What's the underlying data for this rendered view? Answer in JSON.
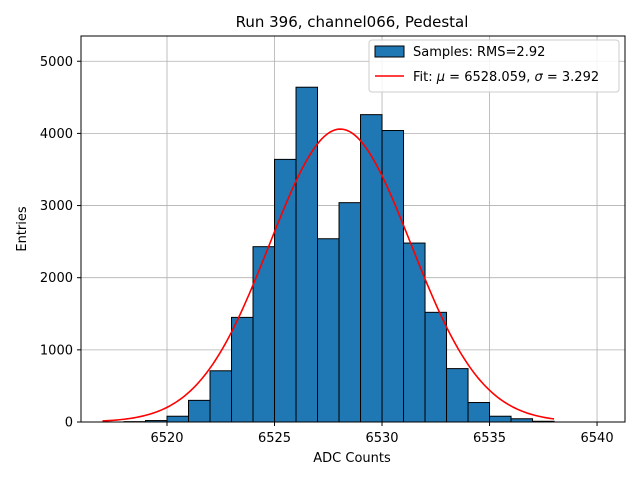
{
  "chart_data": {
    "type": "bar",
    "title": "Run 396, channel066, Pedestal",
    "xlabel": "ADC Counts",
    "ylabel": "Entries",
    "xlim": [
      6516.0,
      6541.3
    ],
    "ylim": [
      0,
      5350
    ],
    "x_ticks": [
      6520,
      6525,
      6530,
      6535,
      6540
    ],
    "y_ticks": [
      0,
      1000,
      2000,
      3000,
      4000,
      5000
    ],
    "grid": true,
    "legend_position": "top-right",
    "histogram": {
      "name": "Samples: RMS=2.92",
      "color": "#1f77b4",
      "edgecolor": "#000000",
      "bin_width": 1,
      "bin_lefts": [
        6518,
        6519,
        6520,
        6521,
        6522,
        6523,
        6524,
        6525,
        6526,
        6527,
        6528,
        6529,
        6530,
        6531,
        6532,
        6533,
        6534,
        6535,
        6536,
        6537
      ],
      "counts": [
        5,
        20,
        80,
        300,
        710,
        1450,
        2430,
        3640,
        4640,
        2540,
        3040,
        4260,
        4040,
        2480,
        1520,
        740,
        270,
        80,
        45,
        10
      ]
    },
    "fit": {
      "name_prefix": "Fit: ",
      "name_mu": "μ",
      "name_mid": " = 6528.059, ",
      "name_sigma": "σ",
      "name_suffix": " = 3.292",
      "type": "gaussian",
      "mu": 6528.059,
      "sigma": 3.292,
      "amplitude": 4060,
      "x_range": [
        6517,
        6538
      ],
      "color": "#ff0000"
    }
  }
}
